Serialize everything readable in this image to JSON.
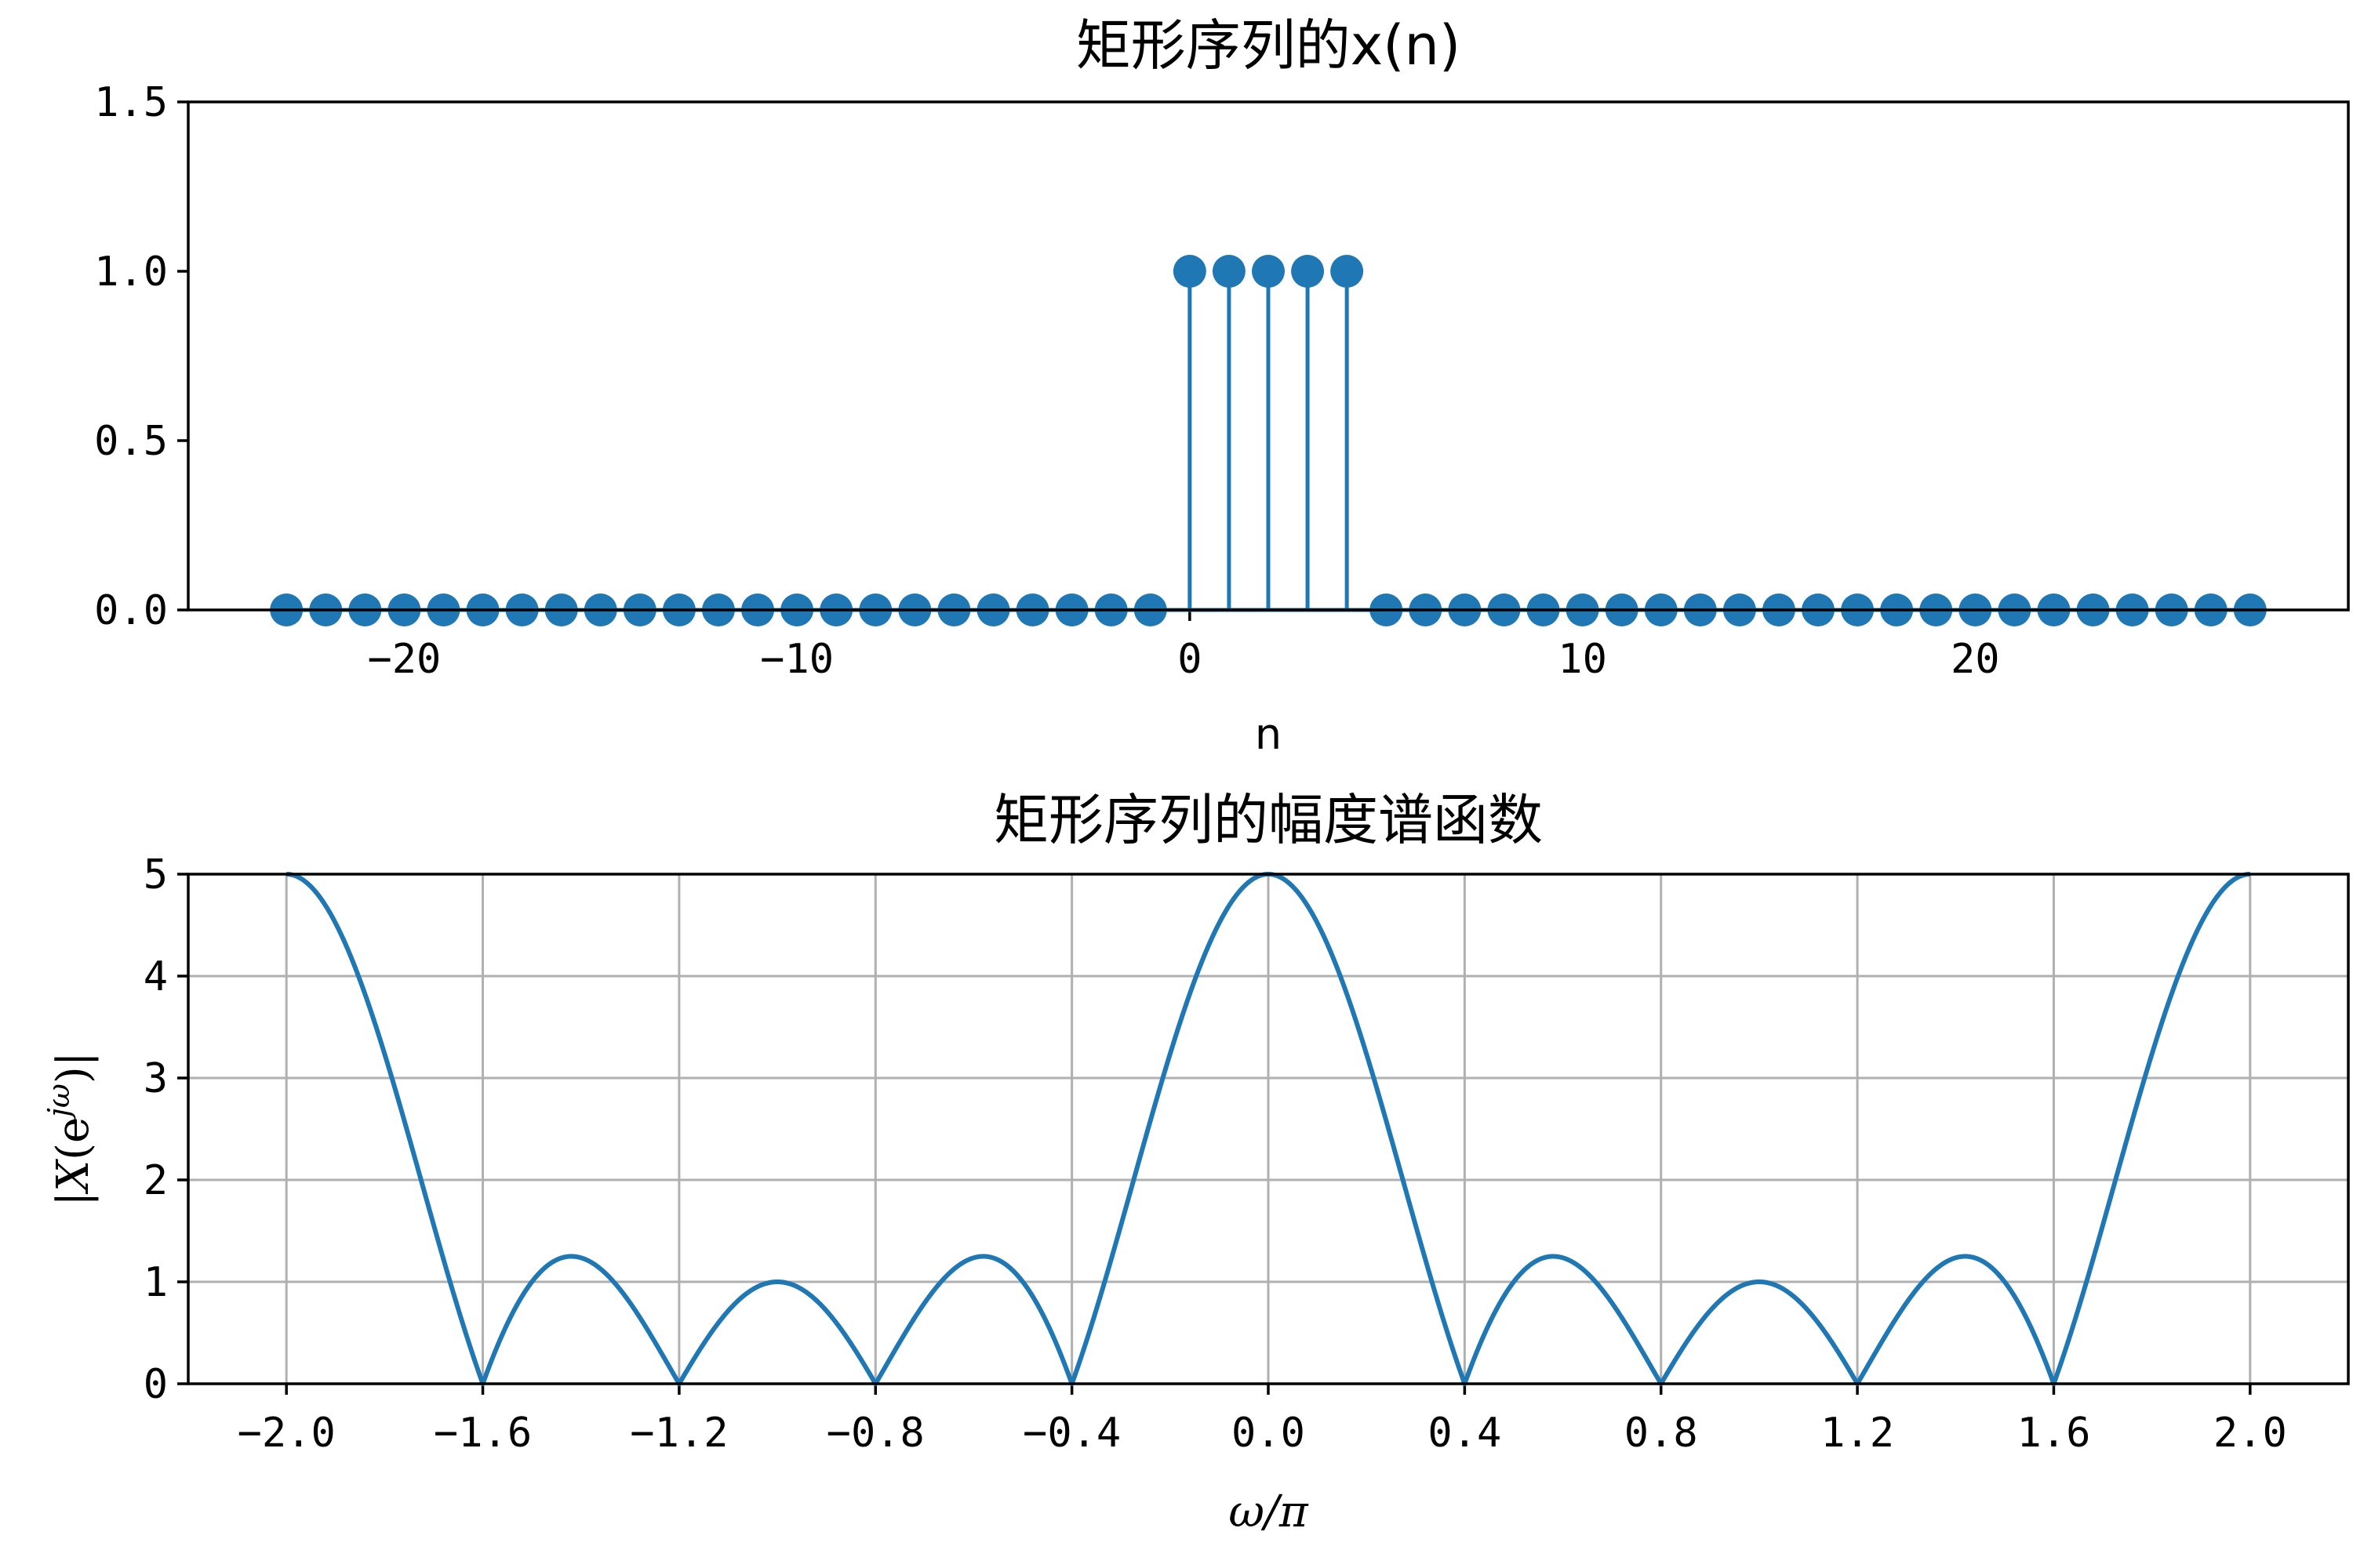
{
  "colors": {
    "series": "#1f77b4",
    "grid": "#b0b0b0",
    "axes": "#000000"
  },
  "chart_data": [
    {
      "type": "stem",
      "title": "矩形序列的x(n)",
      "xlabel": "n",
      "ylabel": "",
      "xlim": [
        -25.5,
        29.5
      ],
      "ylim": [
        0,
        1.5
      ],
      "grid": false,
      "x": [
        -23,
        -22,
        -21,
        -20,
        -19,
        -18,
        -17,
        -16,
        -15,
        -14,
        -13,
        -12,
        -11,
        -10,
        -9,
        -8,
        -7,
        -6,
        -5,
        -4,
        -3,
        -2,
        -1,
        0,
        1,
        2,
        3,
        4,
        5,
        6,
        7,
        8,
        9,
        10,
        11,
        12,
        13,
        14,
        15,
        16,
        17,
        18,
        19,
        20,
        21,
        22,
        23,
        24,
        25,
        26,
        27
      ],
      "y": [
        0,
        0,
        0,
        0,
        0,
        0,
        0,
        0,
        0,
        0,
        0,
        0,
        0,
        0,
        0,
        0,
        0,
        0,
        0,
        0,
        0,
        0,
        0,
        1,
        1,
        1,
        1,
        1,
        0,
        0,
        0,
        0,
        0,
        0,
        0,
        0,
        0,
        0,
        0,
        0,
        0,
        0,
        0,
        0,
        0,
        0,
        0,
        0,
        0,
        0,
        0
      ],
      "xticks": [
        -20,
        -10,
        0,
        10,
        20
      ],
      "xtick_labels": [
        "−20",
        "−10",
        "0",
        "10",
        "20"
      ],
      "yticks": [
        0,
        0.5,
        1.0,
        1.5
      ],
      "ytick_labels": [
        "0.0",
        "0.5",
        "1.0",
        "1.5"
      ]
    },
    {
      "type": "line",
      "title": "矩形序列的幅度谱函数",
      "xlabel": "ω/π",
      "ylabel": "|X(e^jω)|",
      "xlim": [
        -2.2,
        2.2
      ],
      "ylim": [
        0,
        5
      ],
      "grid": true,
      "function": "|sin(5ω/2) / sin(ω/2)|, N = 5",
      "N": 5,
      "x_range": [
        -2.0,
        2.0
      ],
      "key_points": [
        {
          "x": -2.0,
          "y": 5
        },
        {
          "x": -1.6,
          "y": 0
        },
        {
          "x": -1.43,
          "y": 1.24
        },
        {
          "x": -1.2,
          "y": 0
        },
        {
          "x": -1.0,
          "y": 1
        },
        {
          "x": -0.8,
          "y": 0
        },
        {
          "x": -0.57,
          "y": 1.24
        },
        {
          "x": -0.4,
          "y": 0
        },
        {
          "x": 0.0,
          "y": 5
        },
        {
          "x": 0.4,
          "y": 0
        },
        {
          "x": 0.57,
          "y": 1.24
        },
        {
          "x": 0.8,
          "y": 0
        },
        {
          "x": 1.0,
          "y": 1
        },
        {
          "x": 1.2,
          "y": 0
        },
        {
          "x": 1.43,
          "y": 1.24
        },
        {
          "x": 1.6,
          "y": 0
        },
        {
          "x": 2.0,
          "y": 5
        }
      ],
      "xticks": [
        -2.0,
        -1.6,
        -1.2,
        -0.8,
        -0.4,
        0.0,
        0.4,
        0.8,
        1.2,
        1.6,
        2.0
      ],
      "xtick_labels": [
        "−2.0",
        "−1.6",
        "−1.2",
        "−0.8",
        "−0.4",
        "0.0",
        "0.4",
        "0.8",
        "1.2",
        "1.6",
        "2.0"
      ],
      "yticks": [
        0,
        1,
        2,
        3,
        4,
        5
      ],
      "ytick_labels": [
        "0",
        "1",
        "2",
        "3",
        "4",
        "5"
      ]
    }
  ]
}
